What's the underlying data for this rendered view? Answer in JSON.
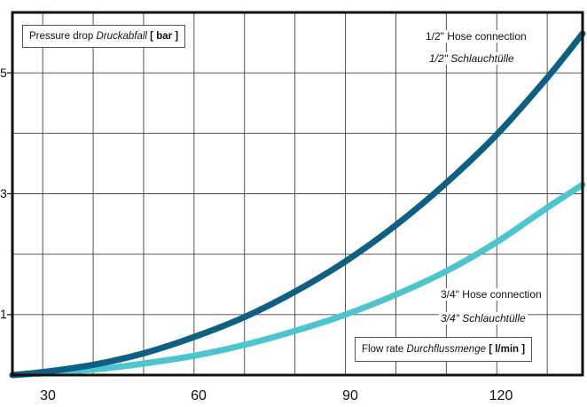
{
  "chart_data": {
    "type": "line",
    "y_axis_box": {
      "label": "Pressure drop",
      "label_italic": "Druckabfall",
      "unit": "[ bar ]"
    },
    "x_axis_box": {
      "label": "Flow rate",
      "label_italic": "Durchflussmenge",
      "unit": "[ l/min ]"
    },
    "xlim": [
      24,
      137
    ],
    "ylim": [
      0,
      6
    ],
    "x_ticks": [
      "30",
      "60",
      "90",
      "120"
    ],
    "x_tick_values": [
      30,
      60,
      90,
      120
    ],
    "y_tick_values": [
      1,
      3,
      5
    ],
    "grid": true,
    "series": [
      {
        "name": "1/2\" Hose connection",
        "name_italic": "1/2\" Schlauchtülle",
        "color": "#0e5f82",
        "x": [
          24,
          30,
          40,
          50,
          60,
          70,
          80,
          90,
          100,
          110,
          120,
          130,
          137
        ],
        "y": [
          0.0,
          0.05,
          0.17,
          0.36,
          0.63,
          0.96,
          1.38,
          1.88,
          2.48,
          3.18,
          3.98,
          4.92,
          5.65
        ]
      },
      {
        "name": "3/4\" Hose connection",
        "name_italic": "3/4\" Schlauchtülle",
        "color": "#4ec4cf",
        "x": [
          24,
          30,
          40,
          50,
          60,
          70,
          80,
          90,
          100,
          110,
          120,
          130,
          137
        ],
        "y": [
          0.0,
          0.03,
          0.09,
          0.19,
          0.32,
          0.5,
          0.73,
          1.0,
          1.33,
          1.72,
          2.2,
          2.77,
          3.15
        ]
      }
    ]
  }
}
